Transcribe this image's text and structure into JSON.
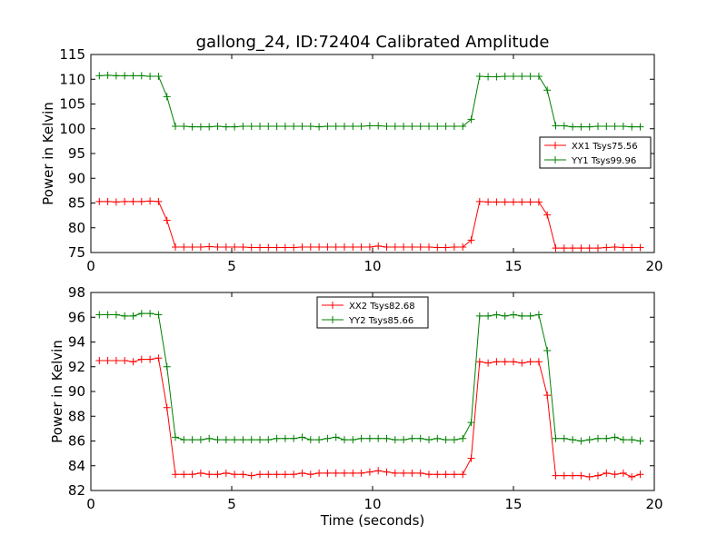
{
  "title": "gallong_24, ID:72404 Calibrated Amplitude",
  "colors": {
    "red_series": "#ff0000",
    "green_series": "#008000"
  },
  "chart_data": [
    {
      "type": "line",
      "xlabel": "",
      "ylabel": "Power in Kelvin",
      "xlim": [
        0,
        20
      ],
      "ylim": [
        75,
        115
      ],
      "xticks": [
        0,
        5,
        10,
        15,
        20
      ],
      "yticks": [
        75,
        80,
        85,
        90,
        95,
        100,
        105,
        110,
        115
      ],
      "grid": false,
      "legend_position": "right",
      "x": [
        0.3,
        0.6,
        0.9,
        1.2,
        1.5,
        1.8,
        2.1,
        2.4,
        2.7,
        3.0,
        3.3,
        3.6,
        3.9,
        4.2,
        4.5,
        4.8,
        5.1,
        5.4,
        5.7,
        6.0,
        6.3,
        6.6,
        6.9,
        7.2,
        7.5,
        7.8,
        8.1,
        8.4,
        8.7,
        9.0,
        9.3,
        9.6,
        9.9,
        10.2,
        10.5,
        10.8,
        11.1,
        11.4,
        11.7,
        12.0,
        12.3,
        12.6,
        12.9,
        13.2,
        13.5,
        13.8,
        14.1,
        14.4,
        14.7,
        15.0,
        15.3,
        15.6,
        15.9,
        16.2,
        16.5,
        16.8,
        17.1,
        17.4,
        17.7,
        18.0,
        18.3,
        18.6,
        18.9,
        19.2,
        19.5
      ],
      "series": [
        {
          "name": "XX1 Tsys75.56",
          "color": "#ff0000",
          "values": [
            85.3,
            85.3,
            85.2,
            85.3,
            85.3,
            85.3,
            85.4,
            85.3,
            81.5,
            76.1,
            76.1,
            76.1,
            76.1,
            76.2,
            76.1,
            76.1,
            76.1,
            76.1,
            76.0,
            76.0,
            76.0,
            76.0,
            76.0,
            76.0,
            76.1,
            76.1,
            76.1,
            76.1,
            76.1,
            76.1,
            76.1,
            76.1,
            76.1,
            76.3,
            76.1,
            76.1,
            76.1,
            76.1,
            76.1,
            76.1,
            76.0,
            76.0,
            76.1,
            76.1,
            77.5,
            85.3,
            85.2,
            85.2,
            85.2,
            85.2,
            85.2,
            85.2,
            85.2,
            82.6,
            75.9,
            75.9,
            75.9,
            75.9,
            75.9,
            75.9,
            76.0,
            76.1,
            76.0,
            76.0,
            76.0
          ]
        },
        {
          "name": "YY1 Tsys99.96",
          "color": "#008000",
          "values": [
            110.7,
            110.8,
            110.7,
            110.7,
            110.7,
            110.7,
            110.6,
            110.6,
            106.5,
            100.5,
            100.5,
            100.4,
            100.4,
            100.4,
            100.5,
            100.4,
            100.4,
            100.5,
            100.5,
            100.5,
            100.5,
            100.5,
            100.5,
            100.5,
            100.5,
            100.5,
            100.4,
            100.5,
            100.5,
            100.5,
            100.5,
            100.5,
            100.6,
            100.6,
            100.5,
            100.5,
            100.5,
            100.5,
            100.5,
            100.5,
            100.5,
            100.5,
            100.5,
            100.5,
            101.9,
            110.6,
            110.5,
            110.5,
            110.6,
            110.6,
            110.6,
            110.6,
            110.6,
            107.8,
            100.6,
            100.6,
            100.4,
            100.4,
            100.4,
            100.5,
            100.5,
            100.5,
            100.5,
            100.4,
            100.4
          ]
        }
      ]
    },
    {
      "type": "line",
      "xlabel": "Time (seconds)",
      "ylabel": "Power in Kelvin",
      "xlim": [
        0,
        20
      ],
      "ylim": [
        82,
        98
      ],
      "xticks": [
        0,
        5,
        10,
        15,
        20
      ],
      "yticks": [
        82,
        84,
        86,
        88,
        90,
        92,
        94,
        96,
        98
      ],
      "grid": false,
      "legend_position": "top-center",
      "x": [
        0.3,
        0.6,
        0.9,
        1.2,
        1.5,
        1.8,
        2.1,
        2.4,
        2.7,
        3.0,
        3.3,
        3.6,
        3.9,
        4.2,
        4.5,
        4.8,
        5.1,
        5.4,
        5.7,
        6.0,
        6.3,
        6.6,
        6.9,
        7.2,
        7.5,
        7.8,
        8.1,
        8.4,
        8.7,
        9.0,
        9.3,
        9.6,
        9.9,
        10.2,
        10.5,
        10.8,
        11.1,
        11.4,
        11.7,
        12.0,
        12.3,
        12.6,
        12.9,
        13.2,
        13.5,
        13.8,
        14.1,
        14.4,
        14.7,
        15.0,
        15.3,
        15.6,
        15.9,
        16.2,
        16.5,
        16.8,
        17.1,
        17.4,
        17.7,
        18.0,
        18.3,
        18.6,
        18.9,
        19.2,
        19.5
      ],
      "series": [
        {
          "name": "XX2 Tsys82.68",
          "color": "#ff0000",
          "values": [
            92.5,
            92.5,
            92.5,
            92.5,
            92.4,
            92.6,
            92.6,
            92.7,
            88.7,
            83.3,
            83.3,
            83.3,
            83.4,
            83.3,
            83.3,
            83.4,
            83.3,
            83.3,
            83.2,
            83.3,
            83.3,
            83.3,
            83.3,
            83.3,
            83.4,
            83.3,
            83.4,
            83.4,
            83.4,
            83.4,
            83.4,
            83.4,
            83.5,
            83.6,
            83.5,
            83.4,
            83.4,
            83.4,
            83.4,
            83.3,
            83.3,
            83.3,
            83.3,
            83.3,
            84.6,
            92.4,
            92.3,
            92.4,
            92.4,
            92.4,
            92.3,
            92.4,
            92.4,
            89.7,
            83.2,
            83.2,
            83.2,
            83.2,
            83.1,
            83.2,
            83.4,
            83.3,
            83.4,
            83.1,
            83.3
          ]
        },
        {
          "name": "YY2 Tsys85.66",
          "color": "#008000",
          "values": [
            96.2,
            96.2,
            96.2,
            96.1,
            96.1,
            96.3,
            96.3,
            96.2,
            92.0,
            86.3,
            86.1,
            86.1,
            86.1,
            86.2,
            86.1,
            86.1,
            86.1,
            86.1,
            86.1,
            86.1,
            86.1,
            86.2,
            86.2,
            86.2,
            86.3,
            86.1,
            86.1,
            86.2,
            86.3,
            86.1,
            86.1,
            86.2,
            86.2,
            86.2,
            86.2,
            86.1,
            86.1,
            86.2,
            86.2,
            86.1,
            86.2,
            86.1,
            86.1,
            86.2,
            87.5,
            96.1,
            96.1,
            96.2,
            96.1,
            96.2,
            96.1,
            96.1,
            96.2,
            93.3,
            86.2,
            86.2,
            86.1,
            86.0,
            86.1,
            86.2,
            86.2,
            86.3,
            86.1,
            86.1,
            86.0
          ]
        }
      ]
    }
  ]
}
